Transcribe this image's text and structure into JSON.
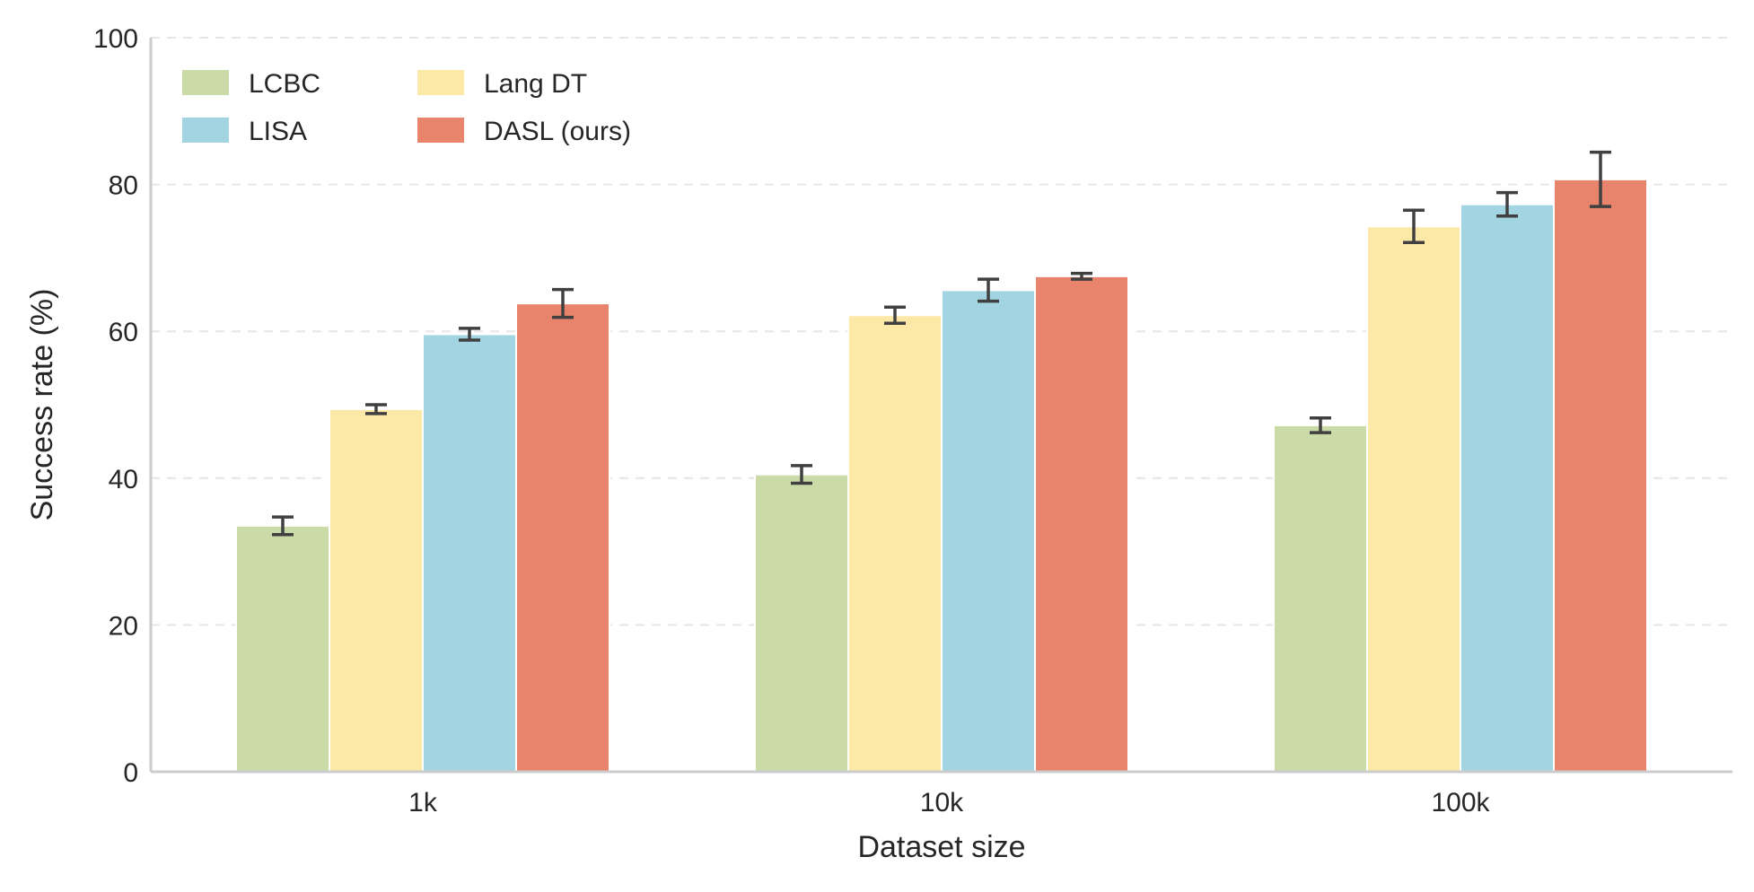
{
  "chart_data": {
    "type": "bar",
    "title": "",
    "xlabel": "Dataset size",
    "ylabel": "Success rate (%)",
    "categories": [
      "1k",
      "10k",
      "100k"
    ],
    "ylim": [
      0,
      100
    ],
    "yticks": [
      "0",
      "20",
      "40",
      "60",
      "80",
      "100"
    ],
    "grid": "horizontal dashed",
    "legend_position": "top-left",
    "series": [
      {
        "name": "LCBC",
        "color": "#cbdba8",
        "values": [
          33.5,
          40.5,
          47.2
        ],
        "errors": [
          1.2,
          1.2,
          1.0
        ]
      },
      {
        "name": "Lang DT",
        "color": "#fde9a7",
        "values": [
          49.4,
          62.2,
          74.3
        ],
        "errors": [
          0.6,
          1.1,
          2.2
        ]
      },
      {
        "name": "LISA",
        "color": "#a3d4e1",
        "values": [
          59.6,
          65.6,
          77.3
        ],
        "errors": [
          0.8,
          1.5,
          1.6
        ]
      },
      {
        "name": "DASL (ours)",
        "color": "#e8846c",
        "values": [
          63.8,
          67.5,
          80.7
        ],
        "errors": [
          1.9,
          0.4,
          3.7
        ]
      }
    ]
  }
}
